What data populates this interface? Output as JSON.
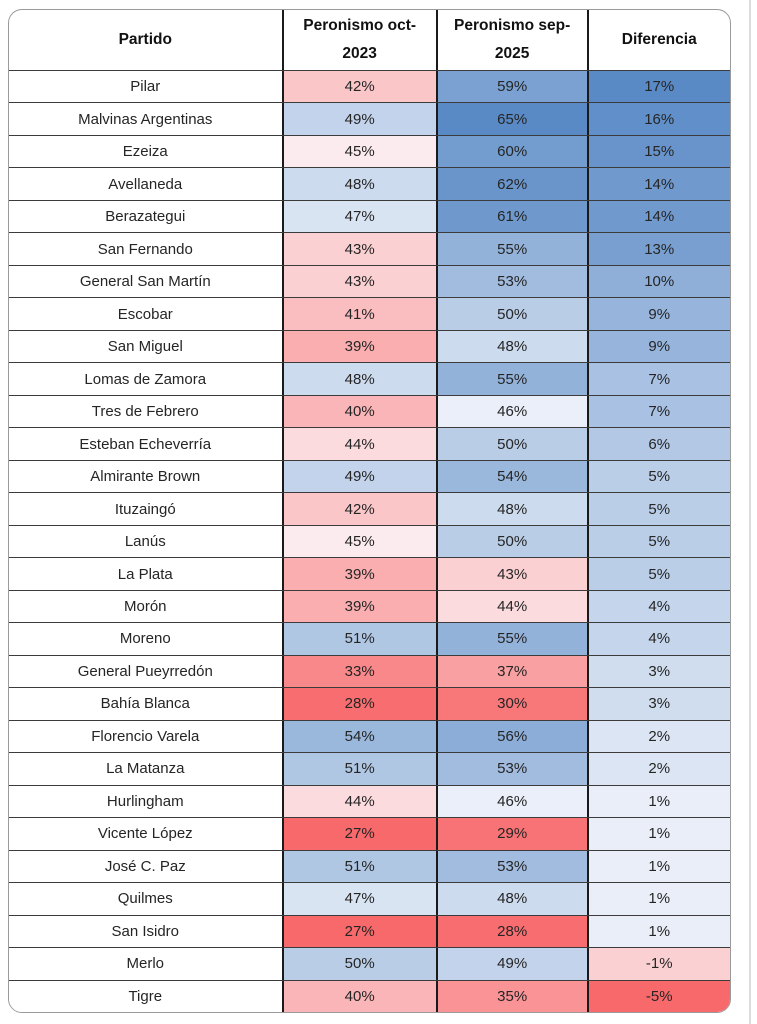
{
  "table": {
    "headers": [
      {
        "id": "partido",
        "lines": [
          "Partido"
        ]
      },
      {
        "id": "oct2023",
        "lines": [
          "Peronismo oct-",
          "2023"
        ]
      },
      {
        "id": "sep2025",
        "lines": [
          "Peronismo sep-",
          "2025"
        ]
      },
      {
        "id": "diferencia",
        "lines": [
          "Diferencia"
        ]
      }
    ],
    "unit": "%"
  },
  "conditional_formatting": {
    "colors": {
      "low": "#F8696B",
      "mid": "#FCFCFF",
      "high": "#5A8AC6"
    },
    "scales": {
      "pct": {
        "min": 27,
        "mid": 45.5,
        "max": 65,
        "exponent": 0.6
      },
      "dif": {
        "min": -5,
        "mid": 0,
        "max": 17,
        "exponent": 0.75
      }
    }
  },
  "chart_data": {
    "type": "table",
    "columns": [
      "Partido",
      "Peronismo oct-2023",
      "Peronismo sep-2025",
      "Diferencia"
    ],
    "value_unit": "%",
    "rows": [
      {
        "partido": "Pilar",
        "oct": 42,
        "sep": 59,
        "dif": 17
      },
      {
        "partido": "Malvinas Argentinas",
        "oct": 49,
        "sep": 65,
        "dif": 16
      },
      {
        "partido": "Ezeiza",
        "oct": 45,
        "sep": 60,
        "dif": 15
      },
      {
        "partido": "Avellaneda",
        "oct": 48,
        "sep": 62,
        "dif": 14
      },
      {
        "partido": "Berazategui",
        "oct": 47,
        "sep": 61,
        "dif": 14
      },
      {
        "partido": "San Fernando",
        "oct": 43,
        "sep": 55,
        "dif": 13
      },
      {
        "partido": "General San Martín",
        "oct": 43,
        "sep": 53,
        "dif": 10
      },
      {
        "partido": "Escobar",
        "oct": 41,
        "sep": 50,
        "dif": 9
      },
      {
        "partido": "San Miguel",
        "oct": 39,
        "sep": 48,
        "dif": 9
      },
      {
        "partido": "Lomas de Zamora",
        "oct": 48,
        "sep": 55,
        "dif": 7
      },
      {
        "partido": "Tres de Febrero",
        "oct": 40,
        "sep": 46,
        "dif": 7
      },
      {
        "partido": "Esteban Echeverría",
        "oct": 44,
        "sep": 50,
        "dif": 6
      },
      {
        "partido": "Almirante Brown",
        "oct": 49,
        "sep": 54,
        "dif": 5
      },
      {
        "partido": "Ituzaingó",
        "oct": 42,
        "sep": 48,
        "dif": 5
      },
      {
        "partido": "Lanús",
        "oct": 45,
        "sep": 50,
        "dif": 5
      },
      {
        "partido": "La Plata",
        "oct": 39,
        "sep": 43,
        "dif": 5
      },
      {
        "partido": "Morón",
        "oct": 39,
        "sep": 44,
        "dif": 4
      },
      {
        "partido": "Moreno",
        "oct": 51,
        "sep": 55,
        "dif": 4
      },
      {
        "partido": "General Pueyrredón",
        "oct": 33,
        "sep": 37,
        "dif": 3
      },
      {
        "partido": "Bahía Blanca",
        "oct": 28,
        "sep": 30,
        "dif": 3
      },
      {
        "partido": "Florencio Varela",
        "oct": 54,
        "sep": 56,
        "dif": 2
      },
      {
        "partido": "La Matanza",
        "oct": 51,
        "sep": 53,
        "dif": 2
      },
      {
        "partido": "Hurlingham",
        "oct": 44,
        "sep": 46,
        "dif": 1
      },
      {
        "partido": "Vicente López",
        "oct": 27,
        "sep": 29,
        "dif": 1
      },
      {
        "partido": "José C. Paz",
        "oct": 51,
        "sep": 53,
        "dif": 1
      },
      {
        "partido": "Quilmes",
        "oct": 47,
        "sep": 48,
        "dif": 1
      },
      {
        "partido": "San Isidro",
        "oct": 27,
        "sep": 28,
        "dif": 1
      },
      {
        "partido": "Merlo",
        "oct": 50,
        "sep": 49,
        "dif": -1
      },
      {
        "partido": "Tigre",
        "oct": 40,
        "sep": 35,
        "dif": -5
      }
    ]
  }
}
